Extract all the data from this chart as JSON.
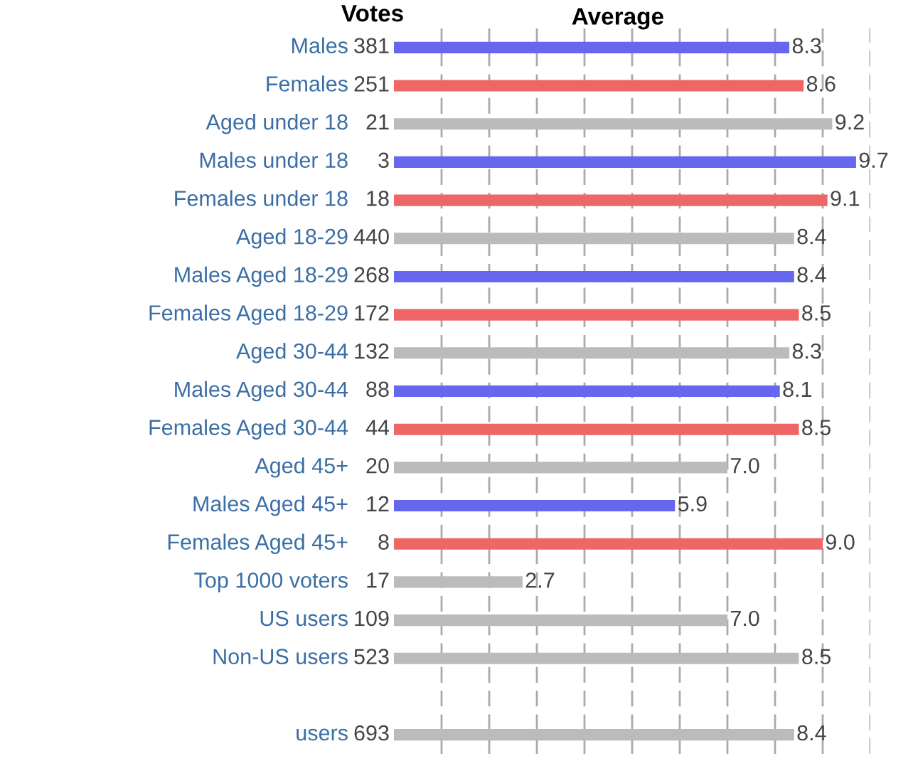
{
  "chart_data": {
    "type": "bar",
    "orientation": "horizontal",
    "xlabel": "Average",
    "categories": [
      "Males",
      "Females",
      "Aged under 18",
      "Males under 18",
      "Females under 18",
      "Aged 18-29",
      "Males Aged 18-29",
      "Females Aged 18-29",
      "Aged 30-44",
      "Males Aged 30-44",
      "Females Aged 30-44",
      "Aged 45+",
      "Males Aged 45+",
      "Females Aged 45+",
      "Top 1000 voters",
      "US users",
      "Non-US users",
      null,
      "users"
    ],
    "values": [
      8.3,
      8.6,
      9.2,
      9.7,
      9.1,
      8.4,
      8.4,
      8.5,
      8.3,
      8.1,
      8.5,
      7.0,
      5.9,
      9.0,
      2.7,
      7.0,
      8.5,
      null,
      8.4
    ],
    "colors": [
      "#6666ee",
      "#ee6666",
      "#bbbbbb",
      "#6666ee",
      "#ee6666",
      "#bbbbbb",
      "#6666ee",
      "#ee6666",
      "#bbbbbb",
      "#6666ee",
      "#ee6666",
      "#bbbbbb",
      "#6666ee",
      "#ee6666",
      "#bbbbbb",
      "#bbbbbb",
      "#bbbbbb",
      "#bbbbbb",
      "#bbbbbb"
    ],
    "value_labels": [
      "8.3",
      "8.6",
      "9.2",
      "9.7",
      "9.1",
      "8.4",
      "8.4",
      "8.5",
      "8.3",
      "8.1",
      "8.5",
      "7.0",
      "5.9",
      "9.0",
      "2.7",
      "7.0",
      "8.5",
      null,
      "8.4"
    ],
    "xlim": [
      0,
      10
    ],
    "xticks": [
      {
        "value": 1,
        "label": null
      },
      {
        "value": 2,
        "label": null
      },
      {
        "value": 3,
        "label": null
      },
      {
        "value": 4,
        "label": null
      },
      {
        "value": 5,
        "label": null
      },
      {
        "value": 6,
        "label": null
      },
      {
        "value": 7,
        "label": null
      },
      {
        "value": 8,
        "label": null
      },
      {
        "value": 9,
        "label": null
      },
      {
        "value": 10,
        "label": null
      }
    ],
    "grid": "x",
    "tick_labels": false,
    "annotations": [
      "Votes",
      "381",
      "251",
      "21",
      "3",
      "18",
      "440",
      "268",
      "172",
      "132",
      "88",
      "44",
      "20",
      "12",
      "8",
      "17",
      "109",
      "523",
      "693"
    ]
  }
}
